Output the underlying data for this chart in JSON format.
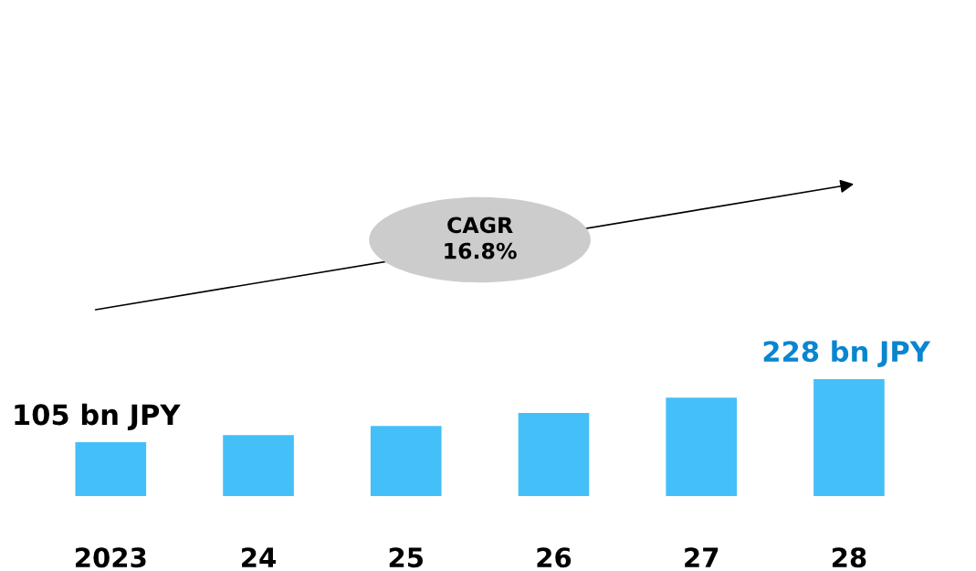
{
  "chart_data": {
    "type": "bar",
    "categories": [
      "2023",
      "24",
      "25",
      "26",
      "27",
      "28"
    ],
    "values": [
      105,
      119,
      137,
      162,
      192,
      228
    ],
    "color": "#45bff8",
    "value_labels": [
      "105 bn JPY",
      null,
      null,
      null,
      null,
      "228 bn JPY"
    ],
    "annotations": [
      "CAGR\n16.8%"
    ],
    "grid": false,
    "legend": false
  }
}
